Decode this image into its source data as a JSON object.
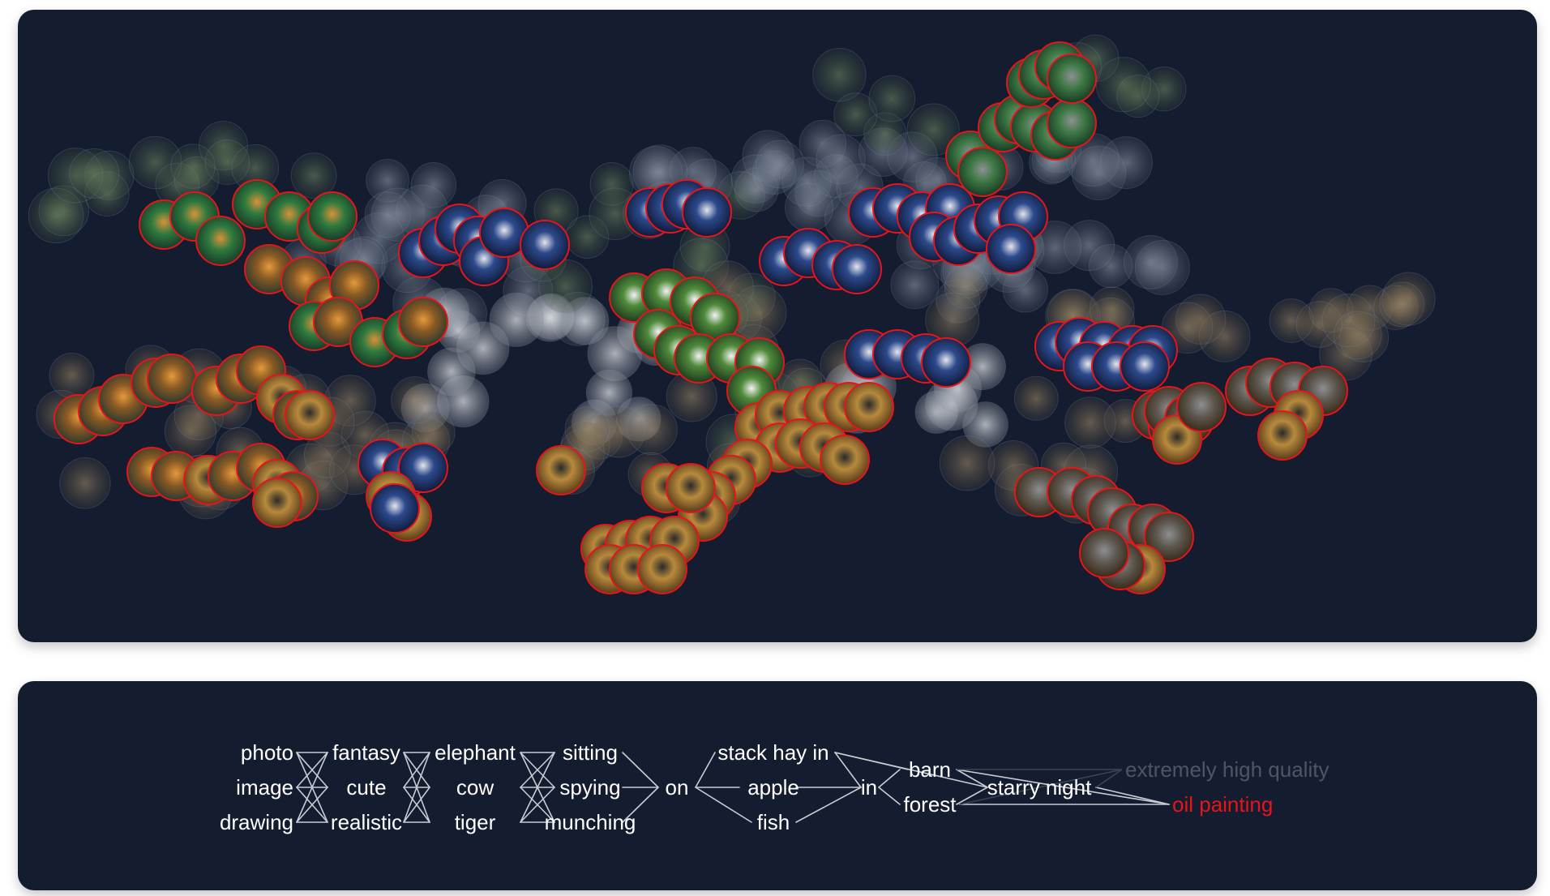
{
  "colors": {
    "panel_bg": "#141c2f",
    "page_bg": "#ffffff",
    "highlight_ring": "#e8141a",
    "word_default": "#ffffff",
    "word_dimmed": "#4e5564",
    "word_selected": "#e8141a",
    "connector": "#c9ccd3"
  },
  "image_map": {
    "subjects": [
      "tiger",
      "cow",
      "elephant"
    ],
    "selected_term": "oil painting"
  },
  "prompt_graph": {
    "columns": [
      {
        "id": "medium",
        "words": [
          "photo",
          "image",
          "drawing"
        ]
      },
      {
        "id": "style",
        "words": [
          "fantasy",
          "cute",
          "realistic"
        ]
      },
      {
        "id": "animal",
        "words": [
          "elephant",
          "cow",
          "tiger"
        ]
      },
      {
        "id": "action",
        "words": [
          "sitting",
          "spying",
          "munching"
        ]
      },
      {
        "id": "prep1",
        "words": [
          "on"
        ]
      },
      {
        "id": "object",
        "words": [
          "stack hay in",
          "apple",
          "fish"
        ]
      },
      {
        "id": "prep2",
        "words": [
          "in"
        ]
      },
      {
        "id": "place",
        "words": [
          "barn",
          "forest"
        ]
      },
      {
        "id": "scene",
        "words": [
          "starry night"
        ]
      },
      {
        "id": "quality",
        "words": [
          "extremely high quality",
          "oil painting"
        ]
      }
    ],
    "dimmed": [
      "extremely high quality"
    ],
    "selected": "oil painting"
  }
}
